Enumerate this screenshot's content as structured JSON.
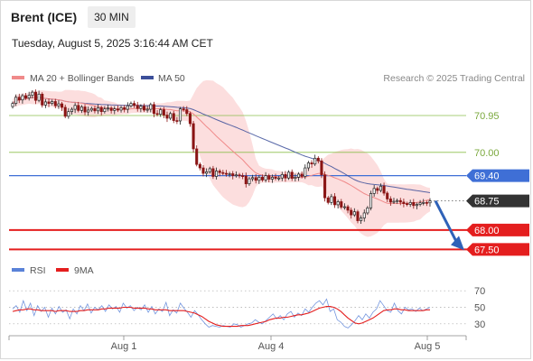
{
  "header": {
    "instrument": "Brent (ICE)",
    "timeframe": "30 MIN",
    "timestamp": "Tuesday, August 5, 2025 3:16:44 AM CET"
  },
  "colors": {
    "ma20": "#f08a8a",
    "band": "#fbd3d3",
    "ma50": "#3c4f9a",
    "level_green": "#8cbf4c",
    "current_line": "#3f6fd6",
    "support": "#e41e1e",
    "candle_up": "#222222",
    "candle_down": "#8a1414",
    "rsi": "#5a82d8",
    "rsi_ma": "#e41e1e",
    "arrow": "#2f62b8"
  },
  "chart_data": [
    {
      "type": "candlestick",
      "legend": [
        "MA 20 + Bollinger Bands",
        "MA 50"
      ],
      "copyright": "Research © 2025 Trading Central",
      "x_ticks": [
        "Aug 1",
        "Aug 4",
        "Aug 5"
      ],
      "ylim": [
        67.3,
        71.6
      ],
      "levels": [
        {
          "value": 70.95,
          "label": "70.95",
          "style": "resistance"
        },
        {
          "value": 70.0,
          "label": "70.00",
          "style": "resistance"
        },
        {
          "value": 69.4,
          "label": "69.40",
          "style": "pivot"
        },
        {
          "value": 68.75,
          "label": "68.75",
          "style": "last"
        },
        {
          "value": 68.0,
          "label": "68.00",
          "style": "support"
        },
        {
          "value": 67.5,
          "label": "67.50",
          "style": "support"
        }
      ],
      "arrow": {
        "from_value": 68.75,
        "to_value": 67.5,
        "direction": "down"
      },
      "close": [
        71.26,
        71.42,
        71.35,
        71.46,
        71.4,
        71.47,
        71.55,
        71.34,
        71.5,
        71.22,
        71.3,
        71.26,
        71.31,
        71.2,
        71.25,
        71.16,
        70.93,
        71.05,
        71.11,
        71.21,
        71.08,
        71.17,
        71.04,
        71.09,
        71.13,
        71.07,
        71.15,
        71.05,
        71.12,
        71.14,
        71.08,
        71.12,
        71.09,
        71.15,
        71.11,
        71.2,
        71.26,
        71.21,
        71.13,
        71.19,
        71.09,
        71.11,
        71.23,
        71.0,
        70.98,
        71.1,
        70.96,
        70.88,
        71.0,
        70.82,
        70.81,
        71.12,
        71.1,
        71.0,
        70.74,
        70.09,
        69.69,
        69.6,
        69.46,
        69.5,
        69.58,
        69.38,
        69.52,
        69.48,
        69.46,
        69.44,
        69.45,
        69.4,
        69.42,
        69.4,
        69.39,
        69.19,
        69.32,
        69.35,
        69.28,
        69.36,
        69.29,
        69.4,
        69.31,
        69.36,
        69.33,
        69.34,
        69.43,
        69.34,
        69.49,
        69.33,
        69.36,
        69.44,
        69.38,
        69.6,
        69.73,
        69.7,
        69.85,
        69.78,
        69.42,
        68.83,
        68.71,
        68.86,
        68.65,
        68.73,
        68.59,
        68.6,
        68.51,
        68.39,
        68.47,
        68.24,
        68.31,
        68.44,
        68.57,
        68.94,
        69.07,
        69.02,
        69.13,
        68.95,
        68.8,
        68.72,
        68.74,
        68.76,
        68.72,
        68.68,
        68.66,
        68.71,
        68.63,
        68.66,
        68.7,
        68.71,
        68.7,
        68.75
      ],
      "open": [
        71.18,
        71.26,
        71.42,
        71.35,
        71.46,
        71.4,
        71.47,
        71.55,
        71.34,
        71.5,
        71.22,
        71.3,
        71.26,
        71.31,
        71.2,
        71.25,
        71.16,
        70.93,
        71.05,
        71.11,
        71.21,
        71.08,
        71.17,
        71.04,
        71.09,
        71.13,
        71.07,
        71.15,
        71.05,
        71.12,
        71.14,
        71.08,
        71.12,
        71.09,
        71.15,
        71.11,
        71.2,
        71.26,
        71.21,
        71.13,
        71.19,
        71.09,
        71.11,
        71.23,
        71.0,
        70.98,
        71.1,
        70.96,
        70.88,
        71.0,
        70.82,
        70.81,
        71.12,
        71.1,
        71.0,
        70.74,
        70.09,
        69.69,
        69.6,
        69.46,
        69.5,
        69.58,
        69.38,
        69.52,
        69.48,
        69.46,
        69.44,
        69.45,
        69.4,
        69.42,
        69.4,
        69.39,
        69.19,
        69.32,
        69.35,
        69.28,
        69.36,
        69.29,
        69.4,
        69.31,
        69.36,
        69.33,
        69.34,
        69.43,
        69.34,
        69.49,
        69.33,
        69.36,
        69.44,
        69.38,
        69.6,
        69.73,
        69.7,
        69.85,
        69.78,
        69.42,
        68.83,
        68.71,
        68.86,
        68.65,
        68.73,
        68.59,
        68.6,
        68.51,
        68.39,
        68.47,
        68.24,
        68.31,
        68.44,
        68.57,
        68.94,
        69.07,
        69.02,
        69.13,
        68.95,
        68.8,
        68.72,
        68.74,
        68.76,
        68.72,
        68.68,
        68.66,
        68.71,
        68.63,
        68.66,
        68.7,
        68.71,
        68.7
      ]
    },
    {
      "type": "line",
      "legend": [
        "RSI",
        "9MA"
      ],
      "y_ticks": [
        70,
        50,
        30
      ],
      "ylim": [
        20,
        80
      ],
      "series": [
        {
          "name": "RSI",
          "values": [
            48,
            52,
            44,
            58,
            46,
            55,
            40,
            52,
            45,
            50,
            38,
            49,
            42,
            51,
            44,
            47,
            36,
            48,
            42,
            52,
            46,
            54,
            43,
            50,
            47,
            52,
            45,
            53,
            48,
            51,
            44,
            55,
            49,
            52,
            46,
            50,
            47,
            53,
            44,
            51,
            42,
            48,
            45,
            56,
            40,
            47,
            43,
            55,
            49,
            44,
            38,
            46,
            41,
            35,
            30,
            26,
            28,
            27,
            26,
            28,
            27,
            26,
            30,
            29,
            26,
            28,
            30,
            31,
            35,
            32,
            30,
            34,
            38,
            42,
            36,
            40,
            35,
            42,
            45,
            38,
            43,
            40,
            48,
            44,
            50,
            55,
            58,
            53,
            60,
            45,
            48,
            35,
            32,
            27,
            25,
            29,
            34,
            40,
            35,
            42,
            37,
            44,
            48,
            58,
            52,
            46,
            44,
            55,
            46,
            42,
            50,
            47,
            48,
            45,
            49,
            46,
            48,
            50
          ]
        },
        {
          "name": "9MA",
          "values": [
            45,
            46,
            47,
            47,
            48,
            48,
            47,
            47,
            46,
            46,
            46,
            46,
            45,
            46,
            46,
            46,
            45,
            45,
            45,
            46,
            46,
            47,
            47,
            47,
            47,
            48,
            48,
            49,
            49,
            49,
            49,
            50,
            50,
            50,
            49,
            49,
            49,
            49,
            48,
            48,
            47,
            47,
            47,
            47,
            46,
            46,
            46,
            46,
            46,
            45,
            44,
            43,
            41,
            39,
            36,
            33,
            31,
            29,
            28,
            27,
            27,
            27,
            27,
            27,
            28,
            28,
            28,
            29,
            30,
            31,
            32,
            33,
            35,
            36,
            37,
            37,
            38,
            38,
            39,
            40,
            41,
            41,
            42,
            43,
            45,
            47,
            49,
            50,
            51,
            51,
            50,
            48,
            45,
            41,
            37,
            34,
            31,
            30,
            31,
            33,
            35,
            37,
            40,
            43,
            46,
            47,
            47,
            48,
            48,
            47,
            47,
            46,
            46,
            46,
            46,
            46,
            47,
            47
          ]
        }
      ]
    }
  ]
}
